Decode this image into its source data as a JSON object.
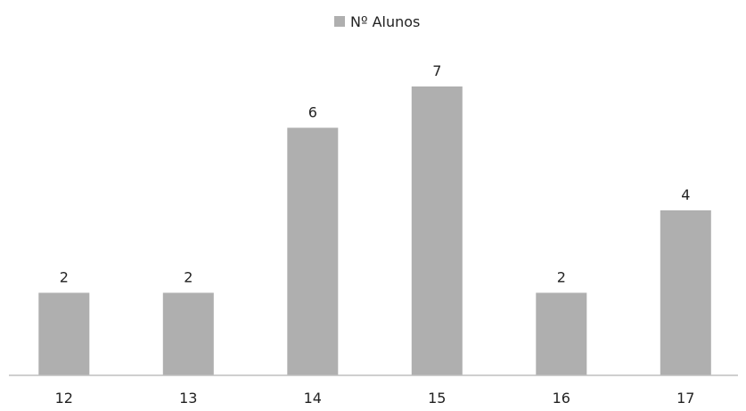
{
  "chart_data": {
    "type": "bar",
    "categories": [
      "12",
      "13",
      "14",
      "15",
      "16",
      "17"
    ],
    "series": [
      {
        "name": "Nº Alunos",
        "values": [
          2,
          2,
          6,
          7,
          2,
          4
        ],
        "color": "#afafaf"
      }
    ],
    "data_labels": [
      "2",
      "2",
      "6",
      "7",
      "2",
      "4"
    ],
    "legend_position": "top",
    "grid": false,
    "ylim": [
      0,
      7.3
    ],
    "axis_color": "#bfbfbf"
  }
}
